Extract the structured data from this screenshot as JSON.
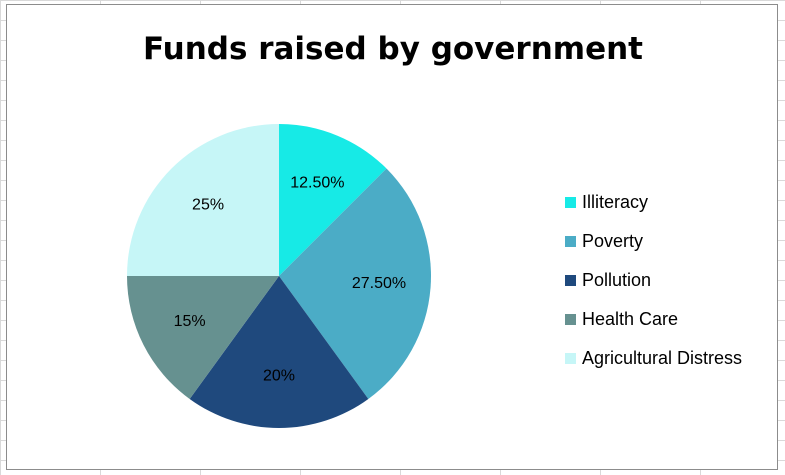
{
  "chart_data": {
    "type": "pie",
    "title": "Funds raised by government",
    "categories": [
      "Illiteracy",
      "Poverty",
      "Pollution",
      "Health Care",
      "Agricultural Distress"
    ],
    "values": [
      12.5,
      27.5,
      20,
      15,
      25
    ],
    "data_labels": [
      "12.50%",
      "27.50%",
      "20%",
      "15%",
      "25%"
    ],
    "colors": [
      "#17eae6",
      "#4bacc6",
      "#1f497d",
      "#669190",
      "#c6f6f7"
    ],
    "start_angle_deg": 0,
    "direction": "clockwise",
    "legend_position": "right"
  }
}
